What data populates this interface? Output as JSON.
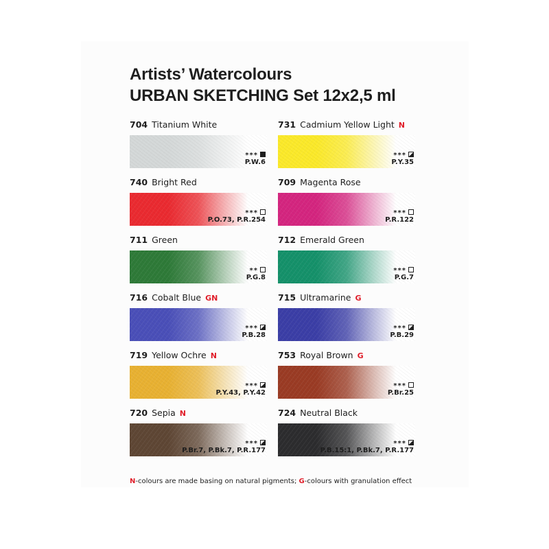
{
  "title_line1": "Artists’ Watercolours",
  "title_line2": "URBAN SKETCHING Set 12x2,5 ml",
  "colours": [
    {
      "number": "704",
      "name": "Titanium White",
      "tag": "",
      "stars": "***",
      "opacity": "opaque",
      "pigment": "P.W.6",
      "color": "#d4d8d8"
    },
    {
      "number": "731",
      "name": "Cadmium Yellow Light",
      "tag": "N",
      "stars": "***",
      "opacity": "semi",
      "pigment": "P.Y.35",
      "color": "#fbe92a"
    },
    {
      "number": "740",
      "name": "Bright Red",
      "tag": "",
      "stars": "***",
      "opacity": "transparent",
      "pigment": "P.O.73, P.R.254",
      "color": "#ea2a30"
    },
    {
      "number": "709",
      "name": "Magenta Rose",
      "tag": "",
      "stars": "***",
      "opacity": "transparent",
      "pigment": "P.R.122",
      "color": "#d4257f"
    },
    {
      "number": "711",
      "name": "Green",
      "tag": "",
      "stars": "**",
      "opacity": "transparent",
      "pigment": "P.G.8",
      "color": "#2e7a38"
    },
    {
      "number": "712",
      "name": "Emerald Green",
      "tag": "",
      "stars": "***",
      "opacity": "transparent",
      "pigment": "P.G.7",
      "color": "#15916a"
    },
    {
      "number": "716",
      "name": "Cobalt Blue",
      "tag": "GN",
      "stars": "***",
      "opacity": "semi",
      "pigment": "P.B.28",
      "color": "#4a4fb8"
    },
    {
      "number": "715",
      "name": "Ultramarine",
      "tag": "G",
      "stars": "***",
      "opacity": "semi",
      "pigment": "P.B.29",
      "color": "#3b3ea6"
    },
    {
      "number": "719",
      "name": "Yellow Ochre",
      "tag": "N",
      "stars": "***",
      "opacity": "semi",
      "pigment": "P.Y.43, P.Y.42",
      "color": "#e8b132"
    },
    {
      "number": "753",
      "name": "Royal Brown",
      "tag": "G",
      "stars": "***",
      "opacity": "transparent",
      "pigment": "P.Br.25",
      "color": "#9a3b24"
    },
    {
      "number": "720",
      "name": "Sepia",
      "tag": "N",
      "stars": "***",
      "opacity": "semi",
      "pigment": "P.Br.7, P.Bk.7, P.R.177",
      "color": "#5e4634"
    },
    {
      "number": "724",
      "name": "Neutral Black",
      "tag": "",
      "stars": "***",
      "opacity": "semi",
      "pigment": "P.B.15:1, P.Bk.7, P.R.177",
      "color": "#2c2c2e"
    }
  ],
  "legend": {
    "n_letter": "N",
    "n_text": "-colours are made basing on natural pigments; ",
    "g_letter": "G",
    "g_text": "-colours with granulation effect"
  },
  "accent_color": "#e01e2a"
}
